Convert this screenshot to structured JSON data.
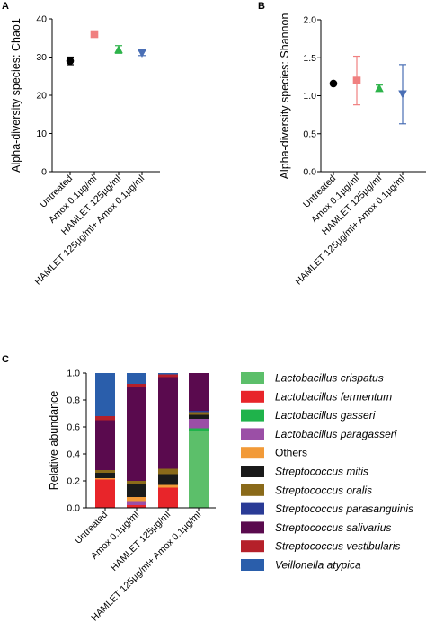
{
  "chart_data": [
    {
      "panel": "A",
      "type": "scatter",
      "ylabel": "Alpha-diversity species: Chao1",
      "ylim": [
        0,
        40
      ],
      "yticks": [
        0,
        10,
        20,
        30,
        40
      ],
      "categories": [
        "Untreated",
        "Amox 0.1μg/ml",
        "HAMLET 125μg/ml",
        "HAMLET 125μg/ml+ Amox 0.1μg/ml"
      ],
      "points": [
        {
          "x": "Untreated",
          "y": 29,
          "err": 1.0,
          "marker": "circle",
          "color": "#000000"
        },
        {
          "x": "Amox 0.1μg/ml",
          "y": 36,
          "err": 0,
          "marker": "square",
          "color": "#f08080"
        },
        {
          "x": "HAMLET 125μg/ml",
          "y": 32,
          "err": 1.0,
          "marker": "triangle-up",
          "color": "#2db34a"
        },
        {
          "x": "HAMLET 125μg/ml+ Amox 0.1μg/ml",
          "y": 31,
          "err": 0.6,
          "marker": "triangle-down",
          "color": "#4a6fb5"
        }
      ]
    },
    {
      "panel": "B",
      "type": "scatter",
      "ylabel": "Alpha-diversity species: Shannon",
      "ylim": [
        0,
        2.0
      ],
      "yticks": [
        "0.0",
        "0.5",
        "1.0",
        "1.5",
        "2.0"
      ],
      "categories": [
        "Untreated",
        "Amox 0.1μg/ml",
        "HAMLET 125μg/ml",
        "HAMLET 125μg/ml+ Amox 0.1μg/ml"
      ],
      "points": [
        {
          "x": "Untreated",
          "y": 1.16,
          "err": 0,
          "marker": "circle",
          "color": "#000000"
        },
        {
          "x": "Amox 0.1μg/ml",
          "y": 1.2,
          "err": 0.32,
          "marker": "square",
          "color": "#f08080"
        },
        {
          "x": "HAMLET 125μg/ml",
          "y": 1.1,
          "err": 0.04,
          "marker": "triangle-up",
          "color": "#2db34a"
        },
        {
          "x": "HAMLET 125μg/ml+ Amox 0.1μg/ml",
          "y": 1.02,
          "err": 0.39,
          "marker": "triangle-down",
          "color": "#4a6fb5"
        }
      ]
    },
    {
      "panel": "C",
      "type": "bar",
      "stacked": true,
      "ylabel": "Relative abundance",
      "ylim": [
        0,
        1.0
      ],
      "yticks": [
        "0.0",
        "0.2",
        "0.4",
        "0.6",
        "0.8",
        "1.0"
      ],
      "categories": [
        "Untreated",
        "Amox 0.1μg/ml",
        "HAMLET 125μg/ml",
        "HAMLET 125μg/ml+ Amox 0.1μg/ml"
      ],
      "series": [
        {
          "name": "Lactobacillus crispatus",
          "italic": true,
          "color": "#5cbf6a",
          "values": [
            0,
            0,
            0,
            0.57
          ]
        },
        {
          "name": "Lactobacillus fermentum",
          "italic": true,
          "color": "#e8252a",
          "values": [
            0.21,
            0.02,
            0.15,
            0
          ]
        },
        {
          "name": "Lactobacillus gasseri",
          "italic": true,
          "color": "#1fb34b",
          "values": [
            0,
            0,
            0,
            0.02
          ]
        },
        {
          "name": "Lactobacillus paragasseri",
          "italic": true,
          "color": "#9b4fa6",
          "values": [
            0,
            0.03,
            0,
            0.07
          ]
        },
        {
          "name": "Others",
          "italic": false,
          "color": "#f29a38",
          "values": [
            0.01,
            0.03,
            0.02,
            0
          ]
        },
        {
          "name": "Streptococcus mitis",
          "italic": true,
          "color": "#1a1a1a",
          "values": [
            0.04,
            0.1,
            0.08,
            0.03
          ]
        },
        {
          "name": "Streptococcus oralis",
          "italic": true,
          "color": "#8a6a1a",
          "values": [
            0.02,
            0.02,
            0.04,
            0.02
          ]
        },
        {
          "name": "Streptococcus parasanguinis",
          "italic": true,
          "color": "#2a3b96",
          "values": [
            0,
            0,
            0,
            0.01
          ]
        },
        {
          "name": "Streptococcus salivarius",
          "italic": true,
          "color": "#5a0a4e",
          "values": [
            0.37,
            0.7,
            0.68,
            0.28
          ]
        },
        {
          "name": "Streptococcus vestibularis",
          "italic": true,
          "color": "#b5202a",
          "values": [
            0.03,
            0.02,
            0.02,
            0
          ]
        },
        {
          "name": "Veillonella atypica",
          "italic": true,
          "color": "#2a5eab",
          "values": [
            0.32,
            0.08,
            0.01,
            0
          ]
        }
      ]
    }
  ]
}
